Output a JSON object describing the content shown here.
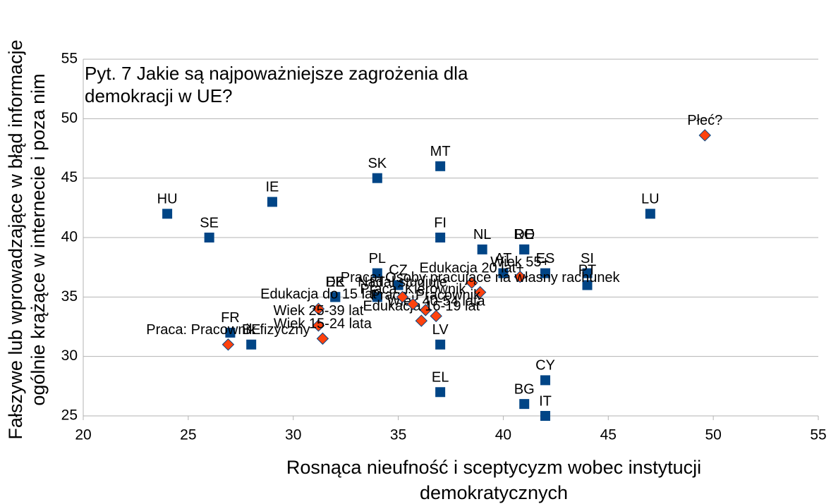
{
  "chart_data": {
    "type": "scatter",
    "title": [
      "Pyt. 7 Jakie są najpoważniejsze zagrożenia dla",
      " demokracji w UE?"
    ],
    "xlabel": [
      "Rosnąca nieufność i sceptycyzm wobec instytucji",
      "demokratycznych"
    ],
    "ylabel": [
      "Fałszywe lub wprowadzające w błąd informacje",
      "ogólnie krążące w internecie i poza nim"
    ],
    "xlim": [
      20,
      55
    ],
    "xticks": [
      20,
      25,
      30,
      35,
      40,
      45,
      50,
      55
    ],
    "ylim": [
      25,
      55
    ],
    "yticks": [
      25,
      30,
      35,
      40,
      45,
      50,
      55
    ],
    "grid": true,
    "series": [
      {
        "color": "#004586",
        "marker": "square",
        "labels": [
          "HU",
          "SE",
          "IE",
          "SK",
          "MT",
          "FI",
          "NL",
          "RO",
          "DE",
          "AT",
          "ES",
          "SI",
          "PT",
          "LU",
          "CY",
          "BG",
          "IT",
          "EL",
          "LV",
          "PL",
          "CZ",
          "DK",
          "EE",
          "FR",
          "BE",
          "LT"
        ],
        "x": [
          24,
          26,
          29,
          34,
          37,
          37,
          39,
          41,
          41,
          40,
          42,
          44,
          44,
          47,
          42,
          41,
          42,
          37,
          37,
          34,
          35,
          32,
          32,
          27,
          28,
          34
        ],
        "values": [
          42,
          40,
          43,
          45,
          46,
          40,
          39,
          39,
          39,
          37,
          37,
          37,
          36,
          42,
          28,
          26,
          25,
          27,
          31,
          37,
          36,
          35,
          35,
          32,
          31,
          35
        ]
      },
      {
        "color": "#ff420e",
        "marker": "diamond",
        "labels": [
          "Płeć?",
          "Praca: Pracownik fizyczny",
          "Edukacja do 15 lat",
          "Wiek 25-39 lat",
          "Wiek 15-24 lata",
          "Edukacja 20 lat+",
          "Wiek 55+",
          "Praca: Osoby pracujące na własny rachunek",
          "Praca: Pracownik",
          "Wiek 40-54 lata",
          "Edukacja 16-19 lat",
          "Nadal studiuje",
          "Praca: Kierownik"
        ],
        "x": [
          49.6,
          26.9,
          31.2,
          31.2,
          31.4,
          38.5,
          40.8,
          38.9,
          36.3,
          36.8,
          36.1,
          35.2,
          35.7
        ],
        "values": [
          48.6,
          31,
          34,
          32.6,
          31.5,
          36.2,
          36.7,
          35.4,
          33.9,
          33.4,
          33,
          35,
          34.4
        ]
      }
    ]
  }
}
